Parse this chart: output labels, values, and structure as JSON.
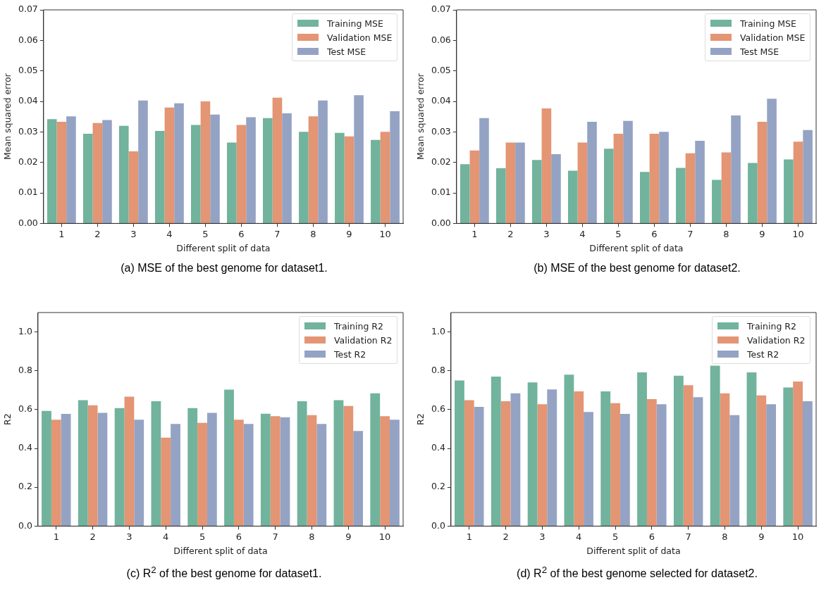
{
  "chart_data": [
    {
      "type": "bar",
      "title": "(a) MSE of the best genome for dataset1.",
      "xlabel": "Different split of data",
      "ylabel": "Mean squared error",
      "categories": [
        "1",
        "2",
        "3",
        "4",
        "5",
        "6",
        "7",
        "8",
        "9",
        "10"
      ],
      "series": [
        {
          "name": "Training MSE",
          "color": "#71b39c",
          "values": [
            0.0342,
            0.0294,
            0.032,
            0.0303,
            0.0323,
            0.0265,
            0.0345,
            0.03,
            0.0297,
            0.0274
          ]
        },
        {
          "name": "Validation MSE",
          "color": "#e39574",
          "values": [
            0.0333,
            0.0329,
            0.0236,
            0.038,
            0.04,
            0.0323,
            0.0412,
            0.0351,
            0.0285,
            0.03
          ]
        },
        {
          "name": "Test MSE",
          "color": "#94a3c4",
          "values": [
            0.0351,
            0.0339,
            0.0403,
            0.0394,
            0.0357,
            0.0348,
            0.0361,
            0.0403,
            0.042,
            0.0368
          ]
        }
      ],
      "ylim": [
        0,
        0.07
      ],
      "yticks": [
        {
          "value": 0,
          "label": "0.00"
        },
        {
          "value": 0.01,
          "label": "0.01"
        },
        {
          "value": 0.02,
          "label": "0.02"
        },
        {
          "value": 0.03,
          "label": "0.03"
        },
        {
          "value": 0.04,
          "label": "0.04"
        },
        {
          "value": 0.05,
          "label": "0.05"
        },
        {
          "value": 0.06,
          "label": "0.06"
        },
        {
          "value": 0.07,
          "label": "0.07"
        }
      ],
      "legend": "top right"
    },
    {
      "type": "bar",
      "title": "(b) MSE of the best genome for dataset2.",
      "xlabel": "Different split of data",
      "ylabel": "Mean squared error",
      "categories": [
        "1",
        "2",
        "3",
        "4",
        "5",
        "6",
        "7",
        "8",
        "9",
        "10"
      ],
      "series": [
        {
          "name": "Training MSE",
          "color": "#71b39c",
          "values": [
            0.0194,
            0.0181,
            0.0208,
            0.0173,
            0.0245,
            0.0169,
            0.0182,
            0.0143,
            0.0198,
            0.021
          ]
        },
        {
          "name": "Validation MSE",
          "color": "#e39574",
          "values": [
            0.0239,
            0.0265,
            0.0377,
            0.0265,
            0.0294,
            0.0294,
            0.023,
            0.0233,
            0.0333,
            0.0268
          ]
        },
        {
          "name": "Test MSE",
          "color": "#94a3c4",
          "values": [
            0.0345,
            0.0265,
            0.0227,
            0.0333,
            0.0336,
            0.03,
            0.0271,
            0.0354,
            0.0409,
            0.0306
          ]
        }
      ],
      "ylim": [
        0,
        0.07
      ],
      "yticks": [
        {
          "value": 0,
          "label": "0.00"
        },
        {
          "value": 0.01,
          "label": "0.01"
        },
        {
          "value": 0.02,
          "label": "0.02"
        },
        {
          "value": 0.03,
          "label": "0.03"
        },
        {
          "value": 0.04,
          "label": "0.04"
        },
        {
          "value": 0.05,
          "label": "0.05"
        },
        {
          "value": 0.06,
          "label": "0.06"
        },
        {
          "value": 0.07,
          "label": "0.07"
        }
      ],
      "legend": "top right"
    },
    {
      "type": "bar",
      "title": "(c) R$^{2}$ of the best genome for dataset1.",
      "xlabel": "Different split of data",
      "ylabel": "R2",
      "categories": [
        "1",
        "2",
        "3",
        "4",
        "5",
        "6",
        "7",
        "8",
        "9",
        "10"
      ],
      "series": [
        {
          "name": "Training R2",
          "color": "#71b39c",
          "values": [
            0.593,
            0.649,
            0.608,
            0.643,
            0.608,
            0.703,
            0.579,
            0.643,
            0.649,
            0.684
          ]
        },
        {
          "name": "Validation R2",
          "color": "#e39574",
          "values": [
            0.548,
            0.622,
            0.667,
            0.456,
            0.532,
            0.548,
            0.566,
            0.572,
            0.619,
            0.566
          ]
        },
        {
          "name": "Test R2",
          "color": "#94a3c4",
          "values": [
            0.578,
            0.583,
            0.548,
            0.526,
            0.583,
            0.526,
            0.561,
            0.526,
            0.49,
            0.548
          ]
        }
      ],
      "ylim": [
        0,
        1.1
      ],
      "yticks": [
        {
          "value": 0,
          "label": "0.0"
        },
        {
          "value": 0.2,
          "label": "0.2"
        },
        {
          "value": 0.4,
          "label": "0.4"
        },
        {
          "value": 0.6,
          "label": "0.6"
        },
        {
          "value": 0.8,
          "label": "0.8"
        },
        {
          "value": 1,
          "label": "1.0"
        }
      ],
      "legend": "top right"
    },
    {
      "type": "bar",
      "title": "(d) R$^{2}$ of the best genome selected for dataset2.",
      "xlabel": "Different split of data",
      "ylabel": "R2",
      "categories": [
        "1",
        "2",
        "3",
        "4",
        "5",
        "6",
        "7",
        "8",
        "9",
        "10"
      ],
      "series": [
        {
          "name": "Training R2",
          "color": "#71b39c",
          "values": [
            0.75,
            0.77,
            0.74,
            0.78,
            0.694,
            0.792,
            0.775,
            0.826,
            0.792,
            0.714
          ]
        },
        {
          "name": "Validation R2",
          "color": "#e39574",
          "values": [
            0.649,
            0.643,
            0.628,
            0.694,
            0.633,
            0.654,
            0.726,
            0.684,
            0.673,
            0.745
          ]
        },
        {
          "name": "Test R2",
          "color": "#94a3c4",
          "values": [
            0.614,
            0.684,
            0.704,
            0.588,
            0.578,
            0.628,
            0.664,
            0.572,
            0.628,
            0.643
          ]
        }
      ],
      "ylim": [
        0,
        1.1
      ],
      "yticks": [
        {
          "value": 0,
          "label": "0.0"
        },
        {
          "value": 0.2,
          "label": "0.2"
        },
        {
          "value": 0.4,
          "label": "0.4"
        },
        {
          "value": 0.6,
          "label": "0.6"
        },
        {
          "value": 0.8,
          "label": "0.8"
        },
        {
          "value": 1,
          "label": "1.0"
        }
      ],
      "legend": "top right"
    }
  ]
}
